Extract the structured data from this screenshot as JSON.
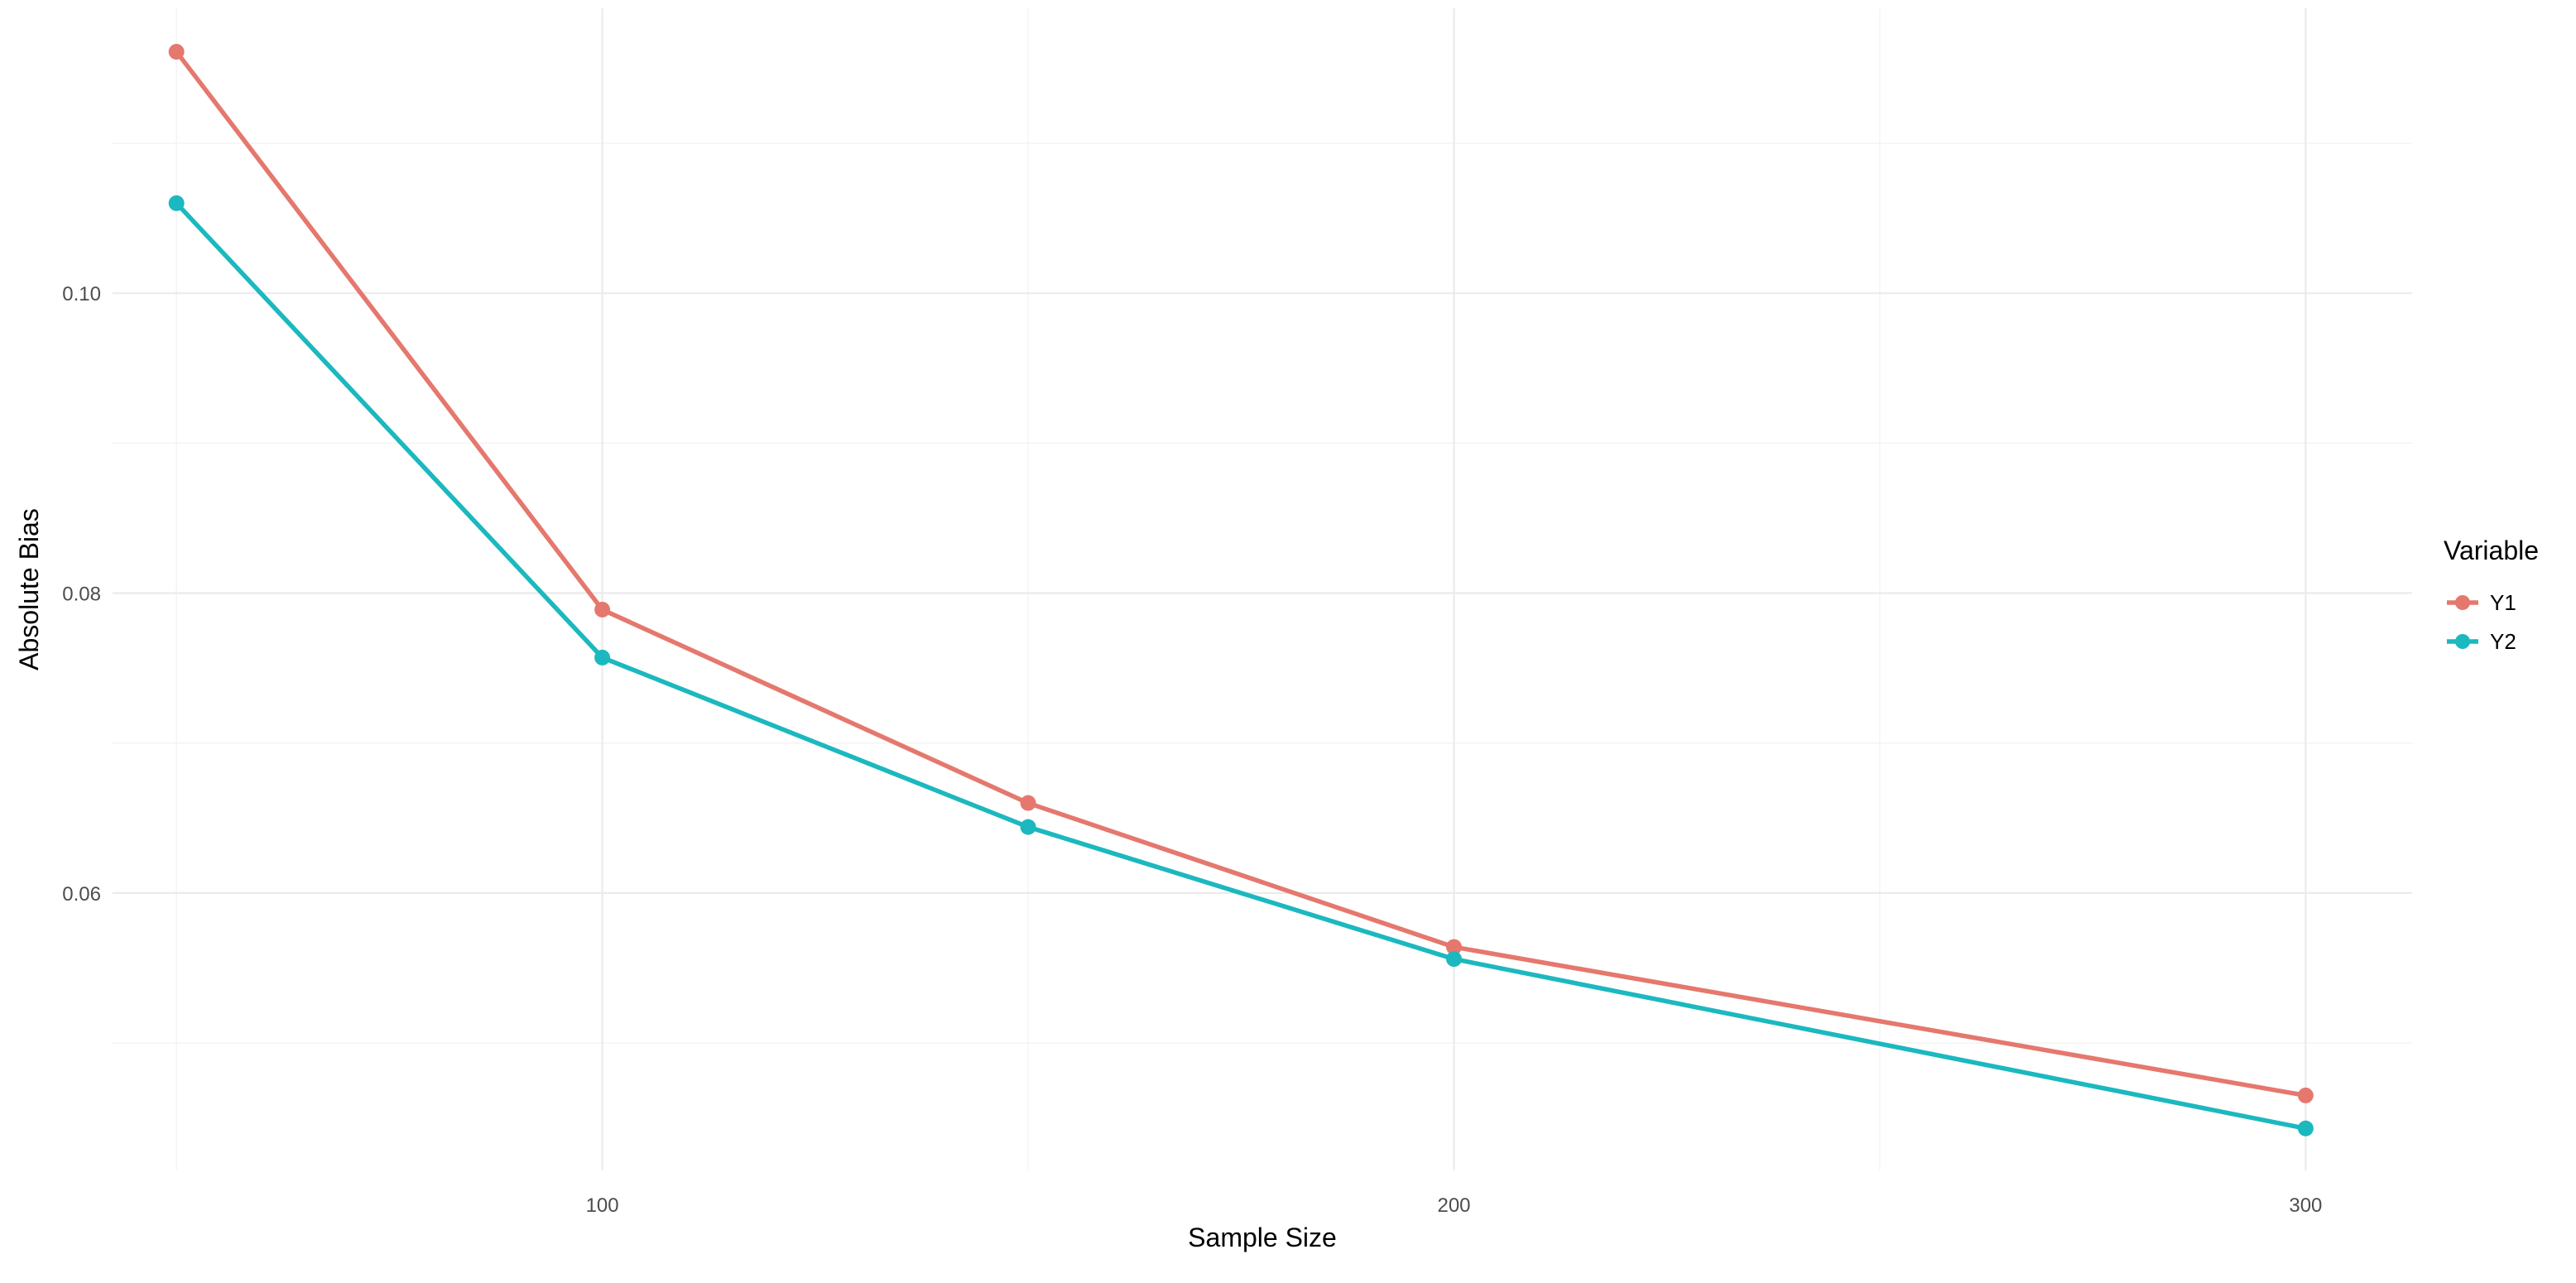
{
  "chart_data": {
    "type": "line",
    "title": "",
    "xlabel": "Sample Size",
    "ylabel": "Absolute Bias",
    "x": [
      50,
      100,
      150,
      200,
      300
    ],
    "xlim": [
      42.5,
      312.5
    ],
    "ylim": [
      0.0415,
      0.119
    ],
    "x_ticks": [
      100,
      200,
      300
    ],
    "x_tick_labels": [
      "100",
      "200",
      "300"
    ],
    "x_minor_ticks": [
      50,
      150,
      250
    ],
    "y_ticks": [
      0.06,
      0.08,
      0.1
    ],
    "y_tick_labels": [
      "0.06",
      "0.08",
      "0.10"
    ],
    "y_minor_ticks": [
      0.05,
      0.07,
      0.09,
      0.11
    ],
    "grid": true,
    "legend": {
      "title": "Variable",
      "position": "right"
    },
    "series": [
      {
        "name": "Y1",
        "color": "#E5786E",
        "values": [
          0.1161,
          0.0789,
          0.066,
          0.0564,
          0.0465
        ]
      },
      {
        "name": "Y2",
        "color": "#1CB8BF",
        "values": [
          0.106,
          0.0757,
          0.0644,
          0.0556,
          0.0443
        ]
      }
    ]
  }
}
